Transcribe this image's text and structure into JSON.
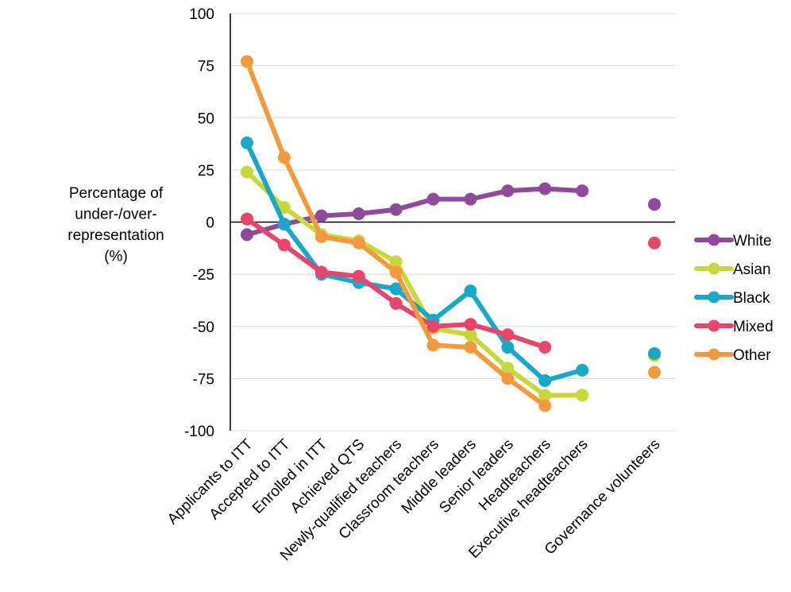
{
  "chart_data": {
    "type": "line",
    "title": "",
    "xlabel": "",
    "ylabel_lines": [
      "Percentage of",
      "under-/over-",
      "representation",
      "(%)"
    ],
    "ylim": [
      -100,
      100
    ],
    "yticks": [
      100,
      75,
      50,
      25,
      0,
      -25,
      -50,
      -75,
      -100
    ],
    "grid": true,
    "legend_position": "right",
    "categories": [
      "Applicants to ITT",
      "Accepted to ITT",
      "Enrolled in ITT",
      "Achieved QTS",
      "Newly-qualified teachers",
      "Classroom teachers",
      "Middle leaders",
      "Senior leaders",
      "Headteachers",
      "Executive headteachers",
      "Governance volunteers"
    ],
    "series": [
      {
        "name": "White",
        "color": "#8f4a9c",
        "values": [
          -6,
          -1,
          3,
          4,
          6,
          11,
          11,
          15,
          16,
          15,
          8.5
        ]
      },
      {
        "name": "Asian",
        "color": "#c6d83a",
        "values": [
          24,
          7,
          -6,
          -9,
          -19,
          -51,
          -54,
          -70,
          -83,
          -83,
          -64
        ]
      },
      {
        "name": "Black",
        "color": "#1aa8c8",
        "values": [
          38,
          -1,
          -25,
          -29,
          -32,
          -47,
          -33,
          -60,
          -76,
          -71,
          -63
        ]
      },
      {
        "name": "Mixed",
        "color": "#e8456a",
        "values": [
          1.5,
          -11,
          -24,
          -26,
          -39,
          -50,
          -49,
          -54,
          -60,
          null,
          -10
        ]
      },
      {
        "name": "Other",
        "color": "#f39a3e",
        "values": [
          77,
          31,
          -7,
          -10,
          -24,
          -59,
          -60,
          -75,
          -88,
          null,
          -72
        ]
      }
    ]
  }
}
